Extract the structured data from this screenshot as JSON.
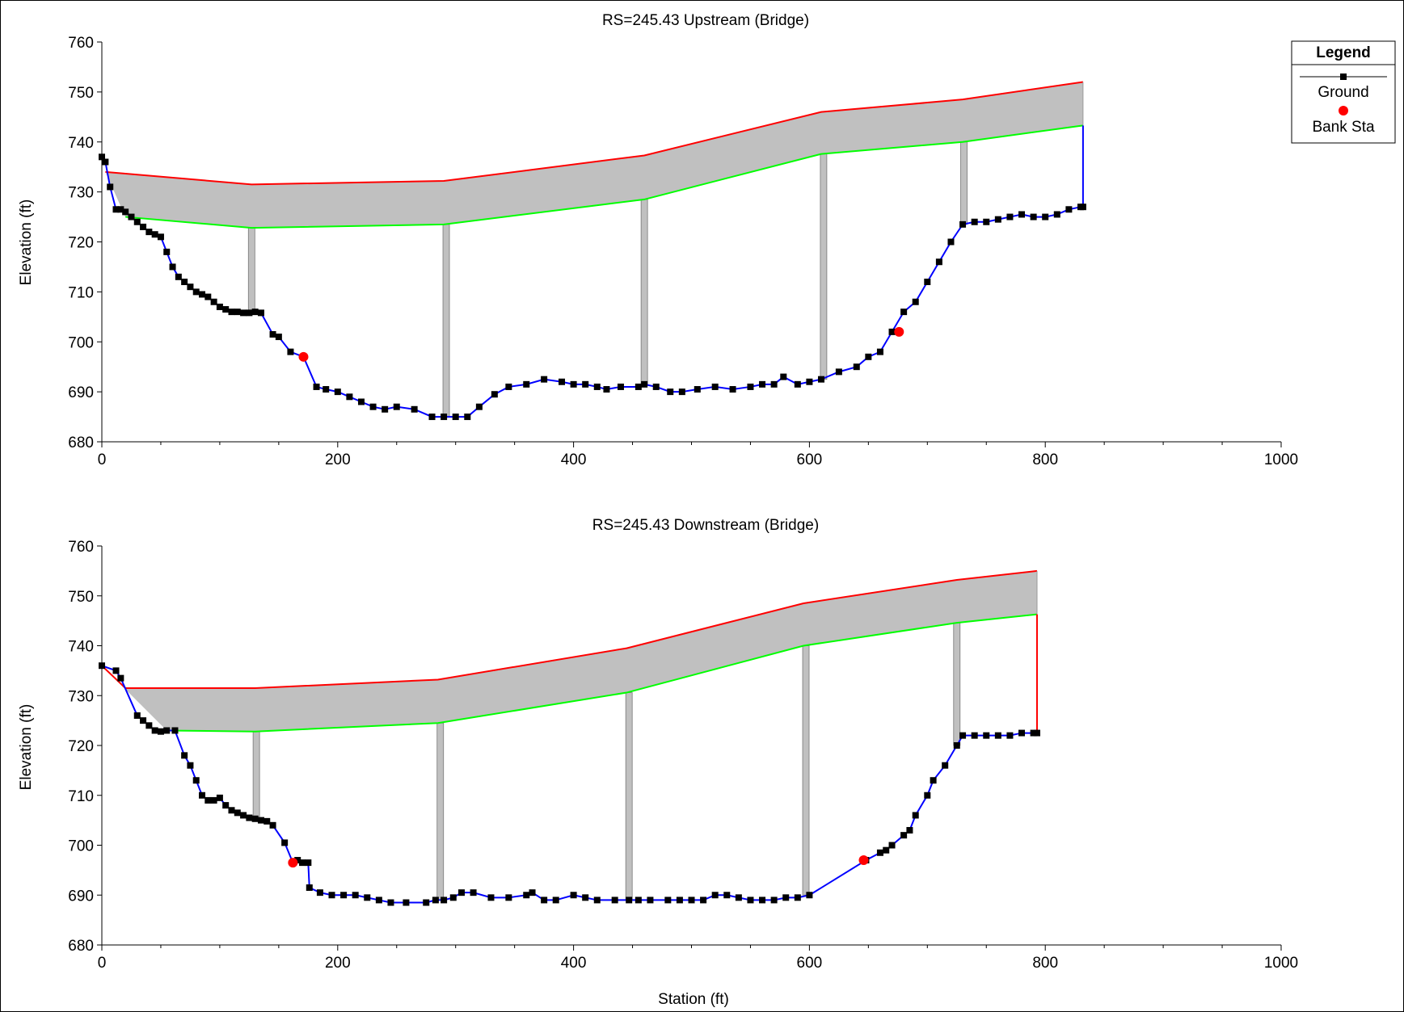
{
  "chart_data": [
    {
      "type": "line",
      "title": "RS=245.43  Upstream  (Bridge)",
      "xlabel": "",
      "ylabel": "Elevation (ft)",
      "xlim": [
        0,
        1000
      ],
      "ylim": [
        680,
        760
      ],
      "xticks": [
        0,
        200,
        400,
        600,
        800,
        1000
      ],
      "yticks": [
        680,
        690,
        700,
        710,
        720,
        730,
        740,
        750,
        760
      ],
      "ground": [
        [
          0,
          737
        ],
        [
          3,
          736
        ],
        [
          7,
          731
        ],
        [
          12,
          726.5
        ],
        [
          16,
          726.5
        ],
        [
          20,
          726
        ],
        [
          25,
          725
        ],
        [
          30,
          724
        ],
        [
          35,
          723
        ],
        [
          40,
          722
        ],
        [
          45,
          721.5
        ],
        [
          50,
          721
        ],
        [
          55,
          718
        ],
        [
          60,
          715
        ],
        [
          65,
          713
        ],
        [
          70,
          712
        ],
        [
          75,
          711
        ],
        [
          80,
          710
        ],
        [
          85,
          709.5
        ],
        [
          90,
          709
        ],
        [
          95,
          708
        ],
        [
          100,
          707
        ],
        [
          105,
          706.5
        ],
        [
          110,
          706
        ],
        [
          115,
          706
        ],
        [
          120,
          705.8
        ],
        [
          125,
          705.8
        ],
        [
          130,
          706
        ],
        [
          135,
          705.8
        ],
        [
          145,
          701.5
        ],
        [
          150,
          701
        ],
        [
          160,
          698
        ],
        [
          171,
          697
        ],
        [
          182,
          691
        ],
        [
          190,
          690.5
        ],
        [
          200,
          690
        ],
        [
          210,
          689
        ],
        [
          220,
          688
        ],
        [
          230,
          687
        ],
        [
          240,
          686.5
        ],
        [
          250,
          687
        ],
        [
          265,
          686.5
        ],
        [
          280,
          685
        ],
        [
          290,
          685
        ],
        [
          300,
          685
        ],
        [
          310,
          685
        ],
        [
          320,
          687
        ],
        [
          333,
          689.5
        ],
        [
          345,
          691
        ],
        [
          360,
          691.5
        ],
        [
          375,
          692.5
        ],
        [
          390,
          692
        ],
        [
          400,
          691.5
        ],
        [
          410,
          691.5
        ],
        [
          420,
          691
        ],
        [
          428,
          690.5
        ],
        [
          440,
          691
        ],
        [
          455,
          691
        ],
        [
          460,
          691.5
        ],
        [
          470,
          691
        ],
        [
          482,
          690
        ],
        [
          492,
          690
        ],
        [
          505,
          690.5
        ],
        [
          520,
          691
        ],
        [
          535,
          690.5
        ],
        [
          550,
          691
        ],
        [
          560,
          691.5
        ],
        [
          570,
          691.5
        ],
        [
          578,
          693
        ],
        [
          590,
          691.5
        ],
        [
          600,
          692
        ],
        [
          610,
          692.5
        ],
        [
          625,
          694
        ],
        [
          640,
          695
        ],
        [
          650,
          697
        ],
        [
          660,
          698
        ],
        [
          670,
          702
        ],
        [
          680,
          706
        ],
        [
          690,
          708
        ],
        [
          700,
          712
        ],
        [
          710,
          716
        ],
        [
          720,
          720
        ],
        [
          730,
          723.5
        ],
        [
          740,
          724
        ],
        [
          750,
          724
        ],
        [
          760,
          724.5
        ],
        [
          770,
          725
        ],
        [
          780,
          725.5
        ],
        [
          790,
          725
        ],
        [
          800,
          725
        ],
        [
          810,
          725.5
        ],
        [
          820,
          726.5
        ],
        [
          830,
          727
        ],
        [
          832,
          727
        ]
      ],
      "bank_sta": [
        [
          171,
          697
        ],
        [
          676,
          702
        ]
      ],
      "deck_high": [
        [
          3,
          734
        ],
        [
          127,
          731.5
        ],
        [
          290,
          732.2
        ],
        [
          460,
          737.3
        ],
        [
          610,
          746
        ],
        [
          730,
          748.5
        ],
        [
          832,
          752
        ]
      ],
      "deck_low": [
        [
          20,
          725
        ],
        [
          127,
          722.8
        ],
        [
          290,
          723.5
        ],
        [
          460,
          728.5
        ],
        [
          610,
          737.6
        ],
        [
          730,
          740
        ],
        [
          832,
          743.3
        ]
      ],
      "piers": [
        {
          "x": 127,
          "top": 722.8,
          "bottom": 705.8
        },
        {
          "x": 292,
          "top": 723.5,
          "bottom": 685
        },
        {
          "x": 460,
          "top": 728.5,
          "bottom": 691.5
        },
        {
          "x": 612,
          "top": 737.6,
          "bottom": 692.5
        },
        {
          "x": 731,
          "top": 740,
          "bottom": 723.5
        }
      ]
    },
    {
      "type": "line",
      "title": "RS=245.43  Downstream  (Bridge)",
      "xlabel": "Station (ft)",
      "ylabel": "Elevation (ft)",
      "xlim": [
        0,
        1000
      ],
      "ylim": [
        680,
        760
      ],
      "xticks": [
        0,
        200,
        400,
        600,
        800,
        1000
      ],
      "yticks": [
        680,
        690,
        700,
        710,
        720,
        730,
        740,
        750,
        760
      ],
      "ground": [
        [
          0,
          736
        ],
        [
          12,
          735
        ],
        [
          16,
          733.5
        ],
        [
          30,
          726
        ],
        [
          35,
          725
        ],
        [
          40,
          724
        ],
        [
          45,
          723
        ],
        [
          50,
          722.8
        ],
        [
          55,
          723
        ],
        [
          62,
          723
        ],
        [
          70,
          718
        ],
        [
          75,
          716
        ],
        [
          80,
          713
        ],
        [
          85,
          710
        ],
        [
          90,
          709
        ],
        [
          95,
          709
        ],
        [
          100,
          709.5
        ],
        [
          105,
          708
        ],
        [
          110,
          707
        ],
        [
          115,
          706.5
        ],
        [
          120,
          706
        ],
        [
          125,
          705.5
        ],
        [
          130,
          705.3
        ],
        [
          135,
          705
        ],
        [
          140,
          704.8
        ],
        [
          145,
          704
        ],
        [
          155,
          700.5
        ],
        [
          162,
          696.5
        ],
        [
          166,
          697
        ],
        [
          170,
          696.5
        ],
        [
          175,
          696.5
        ],
        [
          176,
          691.5
        ],
        [
          185,
          690.5
        ],
        [
          195,
          690
        ],
        [
          205,
          690
        ],
        [
          215,
          690
        ],
        [
          225,
          689.5
        ],
        [
          235,
          689
        ],
        [
          245,
          688.5
        ],
        [
          258,
          688.5
        ],
        [
          275,
          688.5
        ],
        [
          283,
          689
        ],
        [
          290,
          689
        ],
        [
          298,
          689.5
        ],
        [
          305,
          690.5
        ],
        [
          315,
          690.5
        ],
        [
          330,
          689.5
        ],
        [
          345,
          689.5
        ],
        [
          360,
          690
        ],
        [
          365,
          690.5
        ],
        [
          375,
          689
        ],
        [
          385,
          689
        ],
        [
          400,
          690
        ],
        [
          410,
          689.5
        ],
        [
          420,
          689
        ],
        [
          435,
          689
        ],
        [
          447,
          689
        ],
        [
          455,
          689
        ],
        [
          465,
          689
        ],
        [
          480,
          689
        ],
        [
          490,
          689
        ],
        [
          500,
          689
        ],
        [
          510,
          689
        ],
        [
          520,
          690
        ],
        [
          530,
          690
        ],
        [
          540,
          689.5
        ],
        [
          550,
          689
        ],
        [
          560,
          689
        ],
        [
          570,
          689
        ],
        [
          580,
          689.5
        ],
        [
          590,
          689.5
        ],
        [
          600,
          690
        ],
        [
          648,
          697
        ],
        [
          660,
          698.5
        ],
        [
          665,
          699
        ],
        [
          670,
          700
        ],
        [
          680,
          702
        ],
        [
          685,
          703
        ],
        [
          690,
          706
        ],
        [
          700,
          710
        ],
        [
          705,
          713
        ],
        [
          715,
          716
        ],
        [
          725,
          720
        ],
        [
          730,
          722
        ],
        [
          740,
          722
        ],
        [
          750,
          722
        ],
        [
          760,
          722
        ],
        [
          770,
          722
        ],
        [
          780,
          722.5
        ],
        [
          790,
          722.5
        ],
        [
          793,
          722.5
        ]
      ],
      "bank_sta": [
        [
          162,
          696.5
        ],
        [
          646,
          697
        ]
      ],
      "deck_high": [
        [
          0,
          736
        ],
        [
          20,
          731.5
        ],
        [
          130,
          731.5
        ],
        [
          285,
          733.2
        ],
        [
          445,
          739.5
        ],
        [
          595,
          748.5
        ],
        [
          725,
          753.2
        ],
        [
          793,
          755
        ]
      ],
      "deck_low": [
        [
          55,
          723
        ],
        [
          130,
          722.8
        ],
        [
          285,
          724.5
        ],
        [
          445,
          730.6
        ],
        [
          595,
          740
        ],
        [
          725,
          744.6
        ],
        [
          793,
          746.3
        ]
      ],
      "piers": [
        {
          "x": 131,
          "top": 722.8,
          "bottom": 705
        },
        {
          "x": 287,
          "top": 724.5,
          "bottom": 689
        },
        {
          "x": 447,
          "top": 730.6,
          "bottom": 689
        },
        {
          "x": 597,
          "top": 740,
          "bottom": 690
        },
        {
          "x": 725,
          "top": 744.6,
          "bottom": 720
        }
      ]
    }
  ],
  "legend": {
    "title": "Legend",
    "items": [
      {
        "label": "Ground"
      },
      {
        "label": "Bank Sta"
      }
    ]
  },
  "colors": {
    "ground_line": "#0000ff",
    "ground_marker": "#000000",
    "bank_sta": "#ff0000",
    "deck_high": "#ff0000",
    "deck_low": "#00ff00",
    "deck_fill": "#c0c0c0",
    "pier_fill": "#c0c0c0"
  }
}
